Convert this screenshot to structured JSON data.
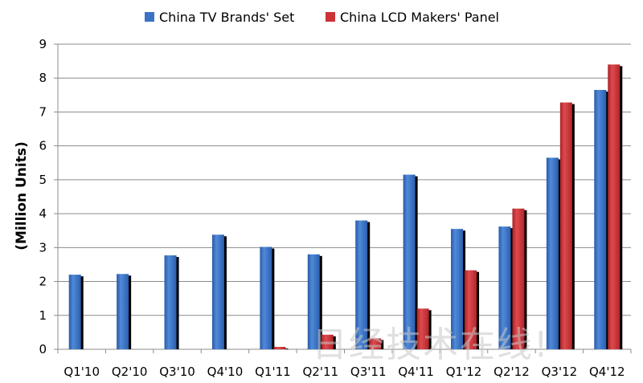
{
  "chart_data": {
    "type": "bar",
    "title": "",
    "xlabel": "",
    "ylabel": "(Million Units)",
    "ylim": [
      0,
      9
    ],
    "yticks": [
      0,
      1,
      2,
      3,
      4,
      5,
      6,
      7,
      8,
      9
    ],
    "categories": [
      "Q1'10",
      "Q2'10",
      "Q3'10",
      "Q4'10",
      "Q1'11",
      "Q2'11",
      "Q3'11",
      "Q4'11",
      "Q1'12",
      "Q2'12",
      "Q3'12",
      "Q4'12"
    ],
    "series": [
      {
        "name": "China TV Brands' Set",
        "color": "#3a73c6",
        "values": [
          2.2,
          2.22,
          2.77,
          3.38,
          3.02,
          2.8,
          3.8,
          5.15,
          3.55,
          3.62,
          5.65,
          7.65
        ]
      },
      {
        "name": "China LCD Makers' Panel",
        "color": "#cc3236",
        "values": [
          null,
          null,
          null,
          null,
          0.07,
          0.43,
          0.32,
          1.2,
          2.33,
          4.15,
          7.28,
          8.4
        ]
      }
    ],
    "grid": true,
    "legend_position": "top"
  },
  "watermark": "日经技术在线!"
}
